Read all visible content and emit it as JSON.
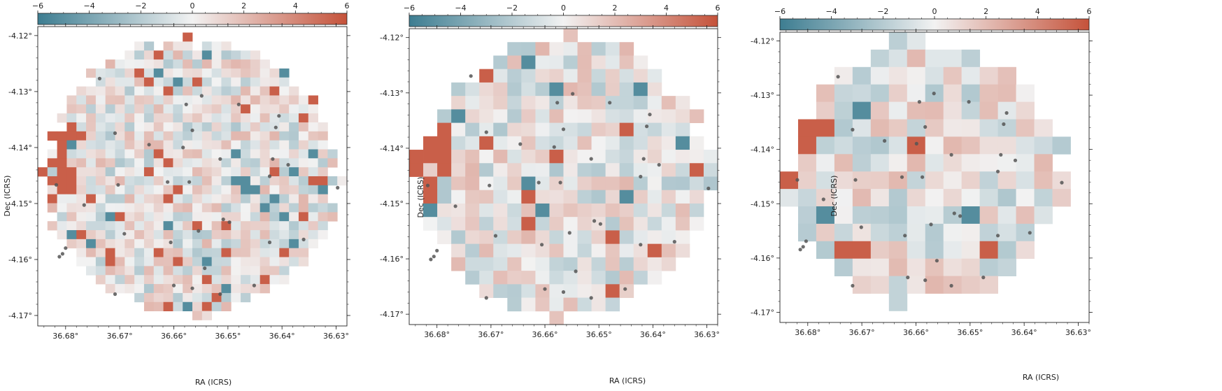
{
  "chart_data": [
    {
      "type": "heatmap",
      "title": "",
      "xlabel": "RA (ICRS)",
      "ylabel": "Dec (ICRS)",
      "x_ticks": [
        "36.68°",
        "36.67°",
        "36.66°",
        "36.65°",
        "36.64°",
        "36.63°"
      ],
      "y_ticks": [
        "-4.12°",
        "-4.13°",
        "-4.14°",
        "-4.15°",
        "-4.16°",
        "-4.17°"
      ],
      "colorbar": {
        "range": [
          -6,
          6
        ],
        "ticks": [
          "−6",
          "−4",
          "−2",
          "0",
          "2",
          "4",
          "6"
        ],
        "placement": "top"
      },
      "colors": {
        "negative": "#3d7d91",
        "zero": "#f2f2f2",
        "positive": "#c5523a",
        "points": "#555555"
      },
      "grid_size": 32,
      "seed": 11
    },
    {
      "type": "heatmap",
      "title": "",
      "xlabel": "RA (ICRS)",
      "ylabel": "Dec (ICRS)",
      "x_ticks": [
        "36.68°",
        "36.67°",
        "36.66°",
        "36.65°",
        "36.64°",
        "36.63°"
      ],
      "y_ticks": [
        "-4.12°",
        "-4.13°",
        "-4.14°",
        "-4.15°",
        "-4.16°",
        "-4.17°"
      ],
      "colorbar": {
        "range": [
          -6,
          6
        ],
        "ticks": [
          "−6",
          "−4",
          "−2",
          "0",
          "2",
          "4",
          "6"
        ],
        "placement": "top"
      },
      "colors": {
        "negative": "#3d7d91",
        "zero": "#f2f2f2",
        "positive": "#c5523a",
        "points": "#555555"
      },
      "grid_size": 22,
      "seed": 23
    },
    {
      "type": "heatmap",
      "title": "",
      "xlabel": "RA (ICRS)",
      "ylabel": "Dec (ICRS)",
      "x_ticks": [
        "36.68°",
        "36.67°",
        "36.66°",
        "36.65°",
        "36.64°",
        "36.63°"
      ],
      "y_ticks": [
        "-4.12°",
        "-4.13°",
        "-4.14°",
        "-4.15°",
        "-4.16°",
        "-4.17°"
      ],
      "colorbar": {
        "range": [
          -6,
          6
        ],
        "ticks": [
          "−6",
          "−4",
          "−2",
          "0",
          "2",
          "4",
          "6"
        ],
        "placement": "top"
      },
      "colors": {
        "negative": "#3d7d91",
        "zero": "#f2f2f2",
        "positive": "#c5523a",
        "points": "#555555"
      },
      "grid_size": 16,
      "seed": 37
    }
  ],
  "points": [
    [
      0.2,
      0.16
    ],
    [
      0.53,
      0.22
    ],
    [
      0.48,
      0.25
    ],
    [
      0.65,
      0.25
    ],
    [
      0.78,
      0.29
    ],
    [
      0.77,
      0.33
    ],
    [
      0.25,
      0.35
    ],
    [
      0.5,
      0.34
    ],
    [
      0.36,
      0.39
    ],
    [
      0.47,
      0.4
    ],
    [
      0.59,
      0.44
    ],
    [
      0.76,
      0.44
    ],
    [
      0.81,
      0.46
    ],
    [
      0.75,
      0.5
    ],
    [
      0.06,
      0.53
    ],
    [
      0.26,
      0.53
    ],
    [
      0.42,
      0.52
    ],
    [
      0.49,
      0.52
    ],
    [
      0.97,
      0.54
    ],
    [
      0.15,
      0.6
    ],
    [
      0.6,
      0.65
    ],
    [
      0.62,
      0.66
    ],
    [
      0.28,
      0.7
    ],
    [
      0.52,
      0.69
    ],
    [
      0.86,
      0.72
    ],
    [
      0.43,
      0.73
    ],
    [
      0.75,
      0.73
    ],
    [
      0.09,
      0.75
    ],
    [
      0.08,
      0.77
    ],
    [
      0.07,
      0.78
    ],
    [
      0.54,
      0.82
    ],
    [
      0.44,
      0.88
    ],
    [
      0.7,
      0.88
    ],
    [
      0.25,
      0.91
    ],
    [
      0.59,
      0.91
    ],
    [
      0.5,
      0.89
    ]
  ]
}
